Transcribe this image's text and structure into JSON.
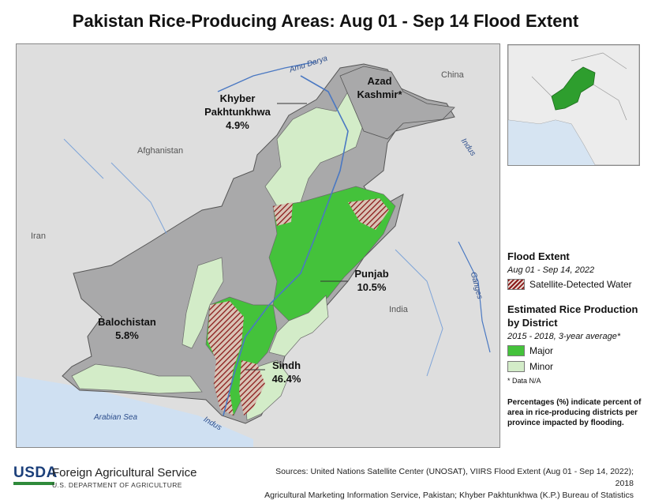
{
  "title": "Pakistan Rice-Producing Areas: Aug 01 - Sep 14 Flood Extent",
  "map": {
    "countries": [
      "Afghanistan",
      "China",
      "Iran",
      "India"
    ],
    "rivers": [
      "Amu Darya",
      "Indus",
      "Ganges",
      "Indus"
    ],
    "sea": "Arabian Sea",
    "provinces": [
      {
        "name": "Khyber Pakhtunkhwa",
        "pct": "4.9%"
      },
      {
        "name": "Azad Kashmir*",
        "pct": ""
      },
      {
        "name": "Punjab",
        "pct": "10.5%"
      },
      {
        "name": "Balochistan",
        "pct": "5.8%"
      },
      {
        "name": "Sindh",
        "pct": "46.4%"
      }
    ]
  },
  "legend": {
    "flood_title": "Flood Extent",
    "flood_date": "Aug 01 - Sep 14, 2022",
    "flood_item": "Satellite-Detected Water",
    "rice_title": "Estimated Rice Production by District",
    "rice_period": "2015 - 2018, 3-year average*",
    "major": "Major",
    "minor": "Minor",
    "note": "* Data N/A",
    "footnote": "Percentages (%) indicate percent of area in rice-producing districts per province impacted by flooding."
  },
  "colors": {
    "major": "#44c23b",
    "minor": "#d3ecc8",
    "province_gray": "#a9a9aa",
    "water": "#8b1a1a",
    "sea": "#cfe0f2"
  },
  "footer": {
    "usda": "USDA",
    "agency": "Foreign Agricultural Service",
    "dept": "U.S. DEPARTMENT OF AGRICULTURE",
    "sources_line1": "Sources: United Nations Satellite Center (UNOSAT), VIIRS Flood Extent (Aug 01 - Sep 14, 2022); 2018",
    "sources_line2": "Agricultural Marketing Information Service, Pakistan; Khyber Pakhtunkhwa (K.P.) Bureau of Statistics"
  }
}
